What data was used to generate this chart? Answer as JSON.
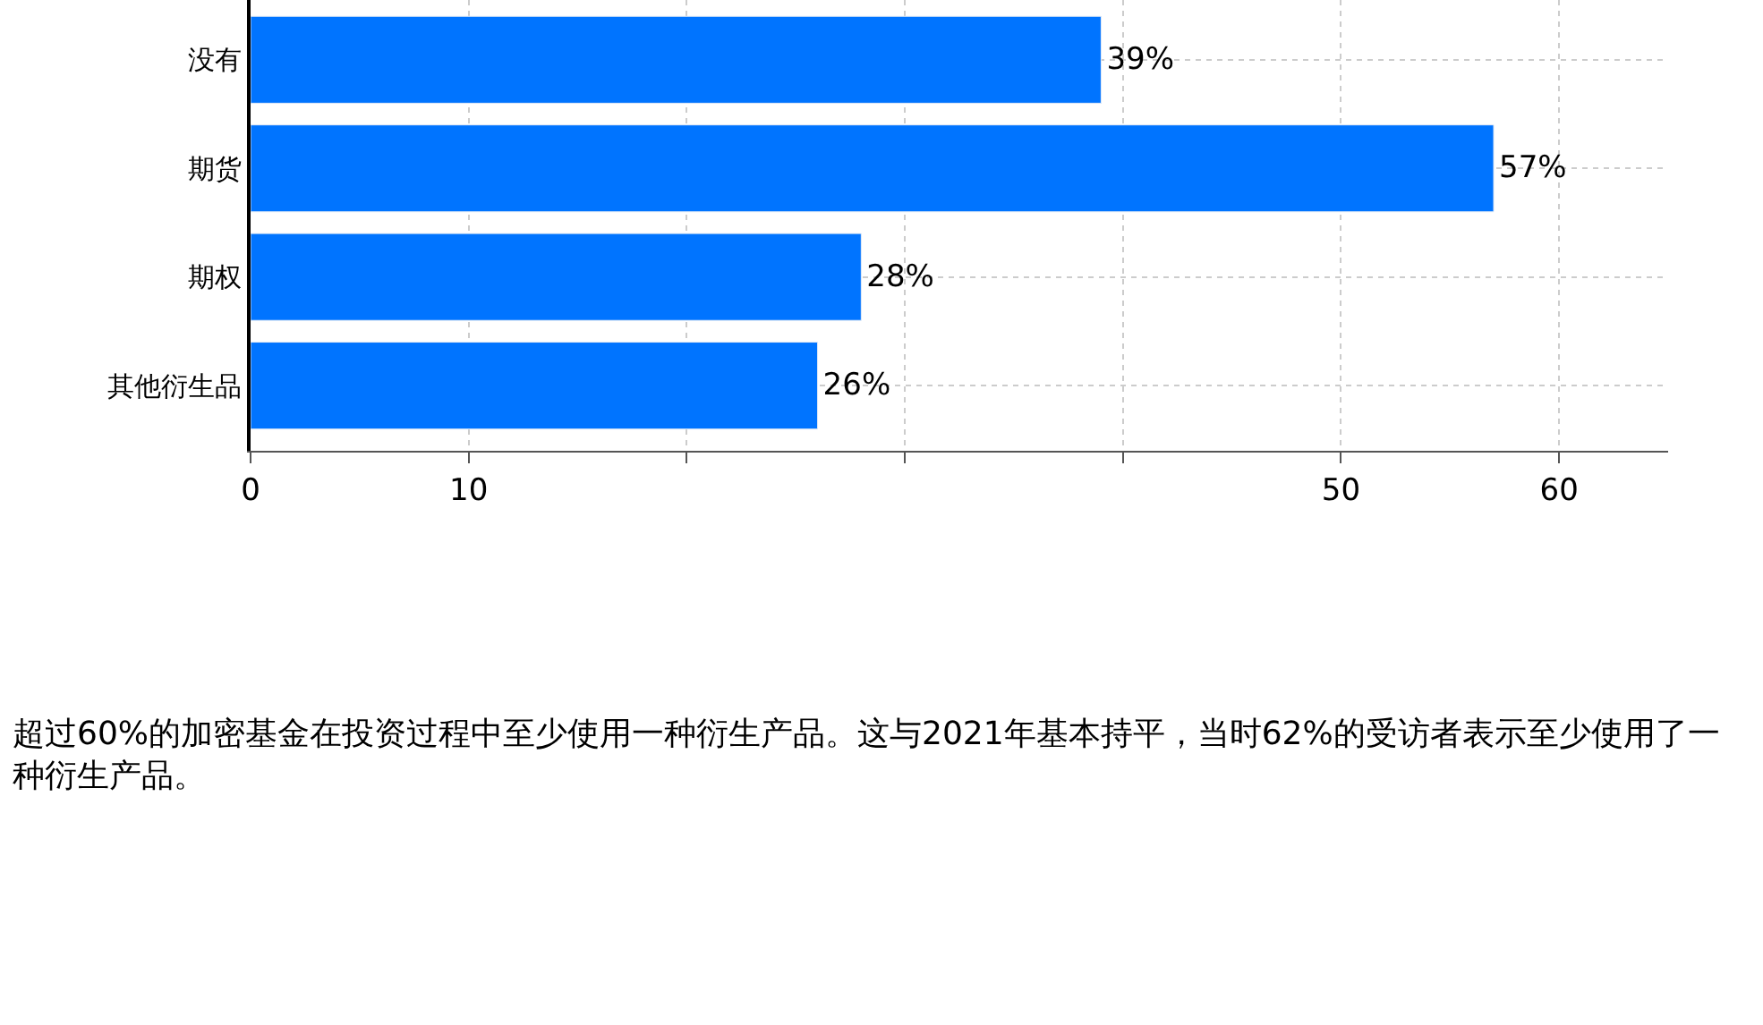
{
  "chart_data": {
    "type": "bar",
    "orientation": "horizontal",
    "categories": [
      "没有",
      "期货",
      "期权",
      "其他衍生品"
    ],
    "values": [
      39,
      57,
      28,
      26
    ],
    "value_labels": [
      "39%",
      "57%",
      "28%",
      "26%"
    ],
    "color": "#0074ff",
    "xlim": [
      0,
      65
    ],
    "xticks": [
      0,
      10,
      {
        "value": 20,
        "label": null
      },
      {
        "value": 30,
        "label": null
      },
      {
        "value": 40,
        "label": null
      },
      50,
      60
    ],
    "grid": true,
    "annotations": [
      "超过60%的加密基金在投资过程中至少使用一种衍生产品。这与2021年基本持平，当时62%的受访者表示至少使用了一种衍生产品。"
    ]
  }
}
